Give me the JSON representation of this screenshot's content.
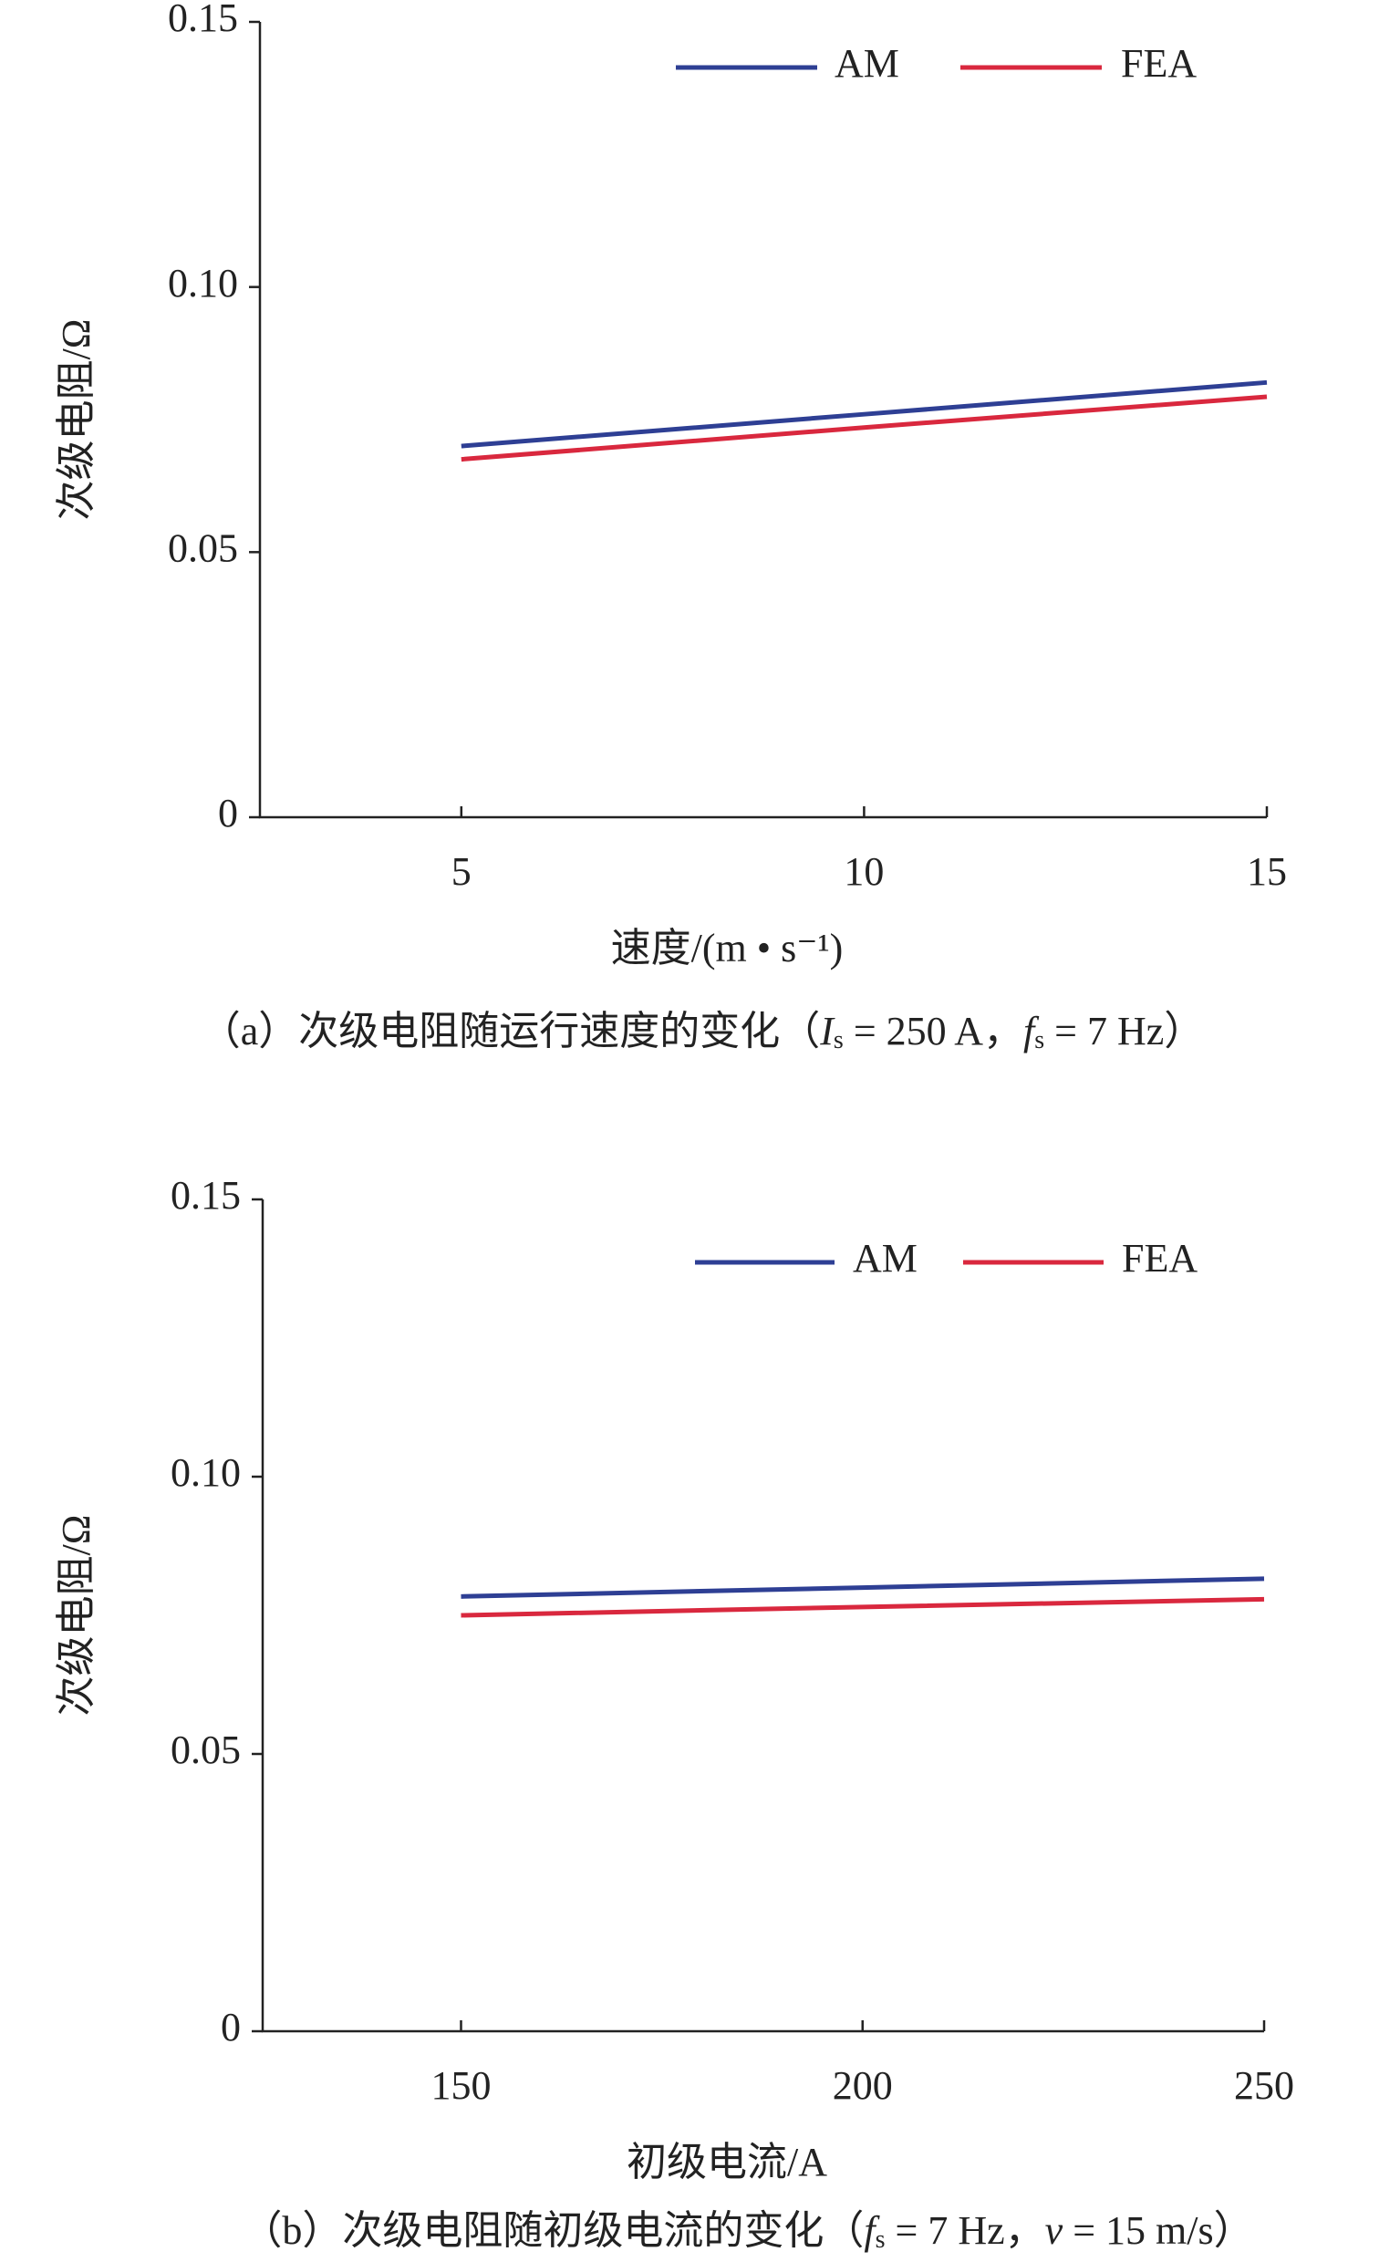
{
  "chart_data": [
    {
      "type": "line",
      "x": [
        5,
        10,
        15
      ],
      "xlim": [
        2.5,
        15
      ],
      "xticks": [
        5,
        10,
        15
      ],
      "ylim": [
        0,
        0.15
      ],
      "yticks": [
        0,
        {
          "value": 0.05,
          "label": "0.05"
        },
        {
          "value": 0.1,
          "label": "0.10"
        },
        0.15
      ],
      "y_label": "次级电阻/Ω",
      "x_label": "速度/(m • s⁻¹)",
      "series": [
        {
          "name": "AM",
          "color": "#2e3f94",
          "values": [
            0.07,
            0.076,
            0.082
          ]
        },
        {
          "name": "FEA",
          "color": "#d9283e",
          "values": [
            0.0675,
            0.0735,
            0.0793
          ]
        }
      ],
      "legend": "top",
      "caption": [
        "（a）次级电阻随运行速度的变化（",
        "I",
        "s",
        " = 250 A，",
        "f",
        "s",
        " = 7 Hz）"
      ]
    },
    {
      "type": "line",
      "x": [
        150,
        200,
        250
      ],
      "xlim": [
        125.3,
        250
      ],
      "xticks": [
        150,
        200,
        250
      ],
      "ylim": [
        0,
        0.15
      ],
      "yticks": [
        0,
        {
          "value": 0.05,
          "label": "0.05"
        },
        {
          "value": 0.1,
          "label": "0.10"
        },
        0.15
      ],
      "y_label": "次级电阻/Ω",
      "x_label": "初级电流/A",
      "series": [
        {
          "name": "AM",
          "color": "#2e3f94",
          "values": [
            0.0784,
            0.08,
            0.0816
          ]
        },
        {
          "name": "FEA",
          "color": "#d9283e",
          "values": [
            0.075,
            0.0765,
            0.0779
          ]
        }
      ],
      "legend": "top",
      "caption": [
        "（b）次级电阻随初级电流的变化（",
        "f",
        "s",
        " = 7 Hz，",
        "v",
        " = 15 m/s）"
      ]
    }
  ]
}
